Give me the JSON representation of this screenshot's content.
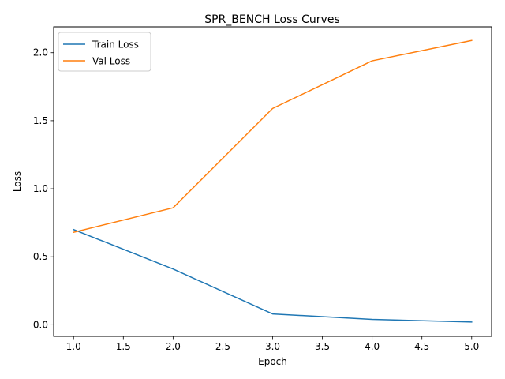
{
  "chart_data": {
    "type": "line",
    "title": "SPR_BENCH Loss Curves",
    "xlabel": "Epoch",
    "ylabel": "Loss",
    "x": [
      1,
      2,
      3,
      4,
      5
    ],
    "xlim": [
      0.8,
      5.2
    ],
    "ylim": [
      -0.085,
      2.19
    ],
    "xticks": [
      "1.0",
      "1.5",
      "2.0",
      "2.5",
      "3.0",
      "3.5",
      "4.0",
      "4.5",
      "5.0"
    ],
    "yticks": [
      "0.0",
      "0.5",
      "1.0",
      "1.5",
      "2.0"
    ],
    "grid": false,
    "legend_position": "upper-left",
    "series": [
      {
        "name": "Train Loss",
        "color": "#1f77b4",
        "values": [
          0.7,
          0.41,
          0.08,
          0.04,
          0.02
        ]
      },
      {
        "name": "Val Loss",
        "color": "#ff7f0e",
        "values": [
          0.68,
          0.86,
          1.59,
          1.94,
          2.09
        ]
      }
    ]
  }
}
